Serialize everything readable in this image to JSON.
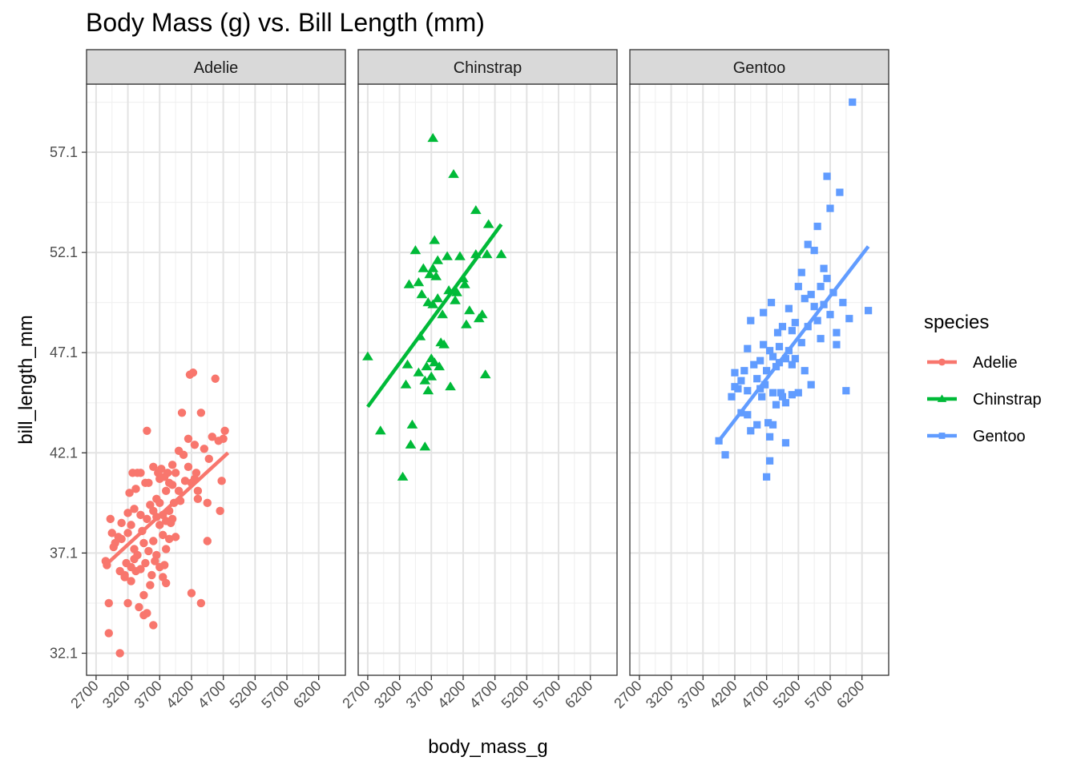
{
  "chart_data": {
    "type": "scatter",
    "title": "Body Mass (g) vs. Bill Length (mm)",
    "xlabel": "body_mass_g",
    "ylabel": "bill_length_mm",
    "xlim": [
      2550,
      6620
    ],
    "ylim": [
      31.0,
      60.5
    ],
    "x_ticks": [
      2700,
      3200,
      3700,
      4200,
      4700,
      5200,
      5700,
      6200
    ],
    "x_tick_labels": [
      "2700",
      "3200",
      "3700",
      "4200",
      "4700",
      "5200",
      "5700",
      "6200"
    ],
    "y_ticks": [
      32.1,
      37.1,
      42.1,
      47.1,
      52.1,
      57.1
    ],
    "y_tick_labels": [
      "32.1",
      "37.1",
      "42.1",
      "47.1",
      "52.1",
      "57.1"
    ],
    "grid": true,
    "legend": {
      "title": "species",
      "placement": "right"
    },
    "series": [
      {
        "name": "Adelie",
        "facet": "Adelie",
        "color": "#F8766D",
        "shape": "circle",
        "trend": [
          [
            2850,
            36.5
          ],
          [
            4775,
            42.1
          ]
        ],
        "points": [
          [
            2850,
            36.7
          ],
          [
            2870,
            36.5
          ],
          [
            2900,
            34.6
          ],
          [
            2900,
            33.1
          ],
          [
            2925,
            38.8
          ],
          [
            2950,
            38.1
          ],
          [
            2975,
            37.4
          ],
          [
            3000,
            37.6
          ],
          [
            3050,
            37.9
          ],
          [
            3075,
            32.1
          ],
          [
            3075,
            36.2
          ],
          [
            3100,
            38.6
          ],
          [
            3100,
            37.8
          ],
          [
            3150,
            36.0
          ],
          [
            3150,
            35.9
          ],
          [
            3175,
            36.6
          ],
          [
            3200,
            39.1
          ],
          [
            3200,
            38.1
          ],
          [
            3200,
            34.6
          ],
          [
            3225,
            40.1
          ],
          [
            3250,
            36.4
          ],
          [
            3250,
            38.5
          ],
          [
            3250,
            35.7
          ],
          [
            3275,
            41.1
          ],
          [
            3300,
            37.3
          ],
          [
            3300,
            39.3
          ],
          [
            3300,
            36.8
          ],
          [
            3325,
            36.2
          ],
          [
            3325,
            40.3
          ],
          [
            3350,
            41.1
          ],
          [
            3350,
            37.0
          ],
          [
            3375,
            34.4
          ],
          [
            3400,
            39.0
          ],
          [
            3400,
            41.1
          ],
          [
            3400,
            36.3
          ],
          [
            3425,
            38.2
          ],
          [
            3450,
            37.6
          ],
          [
            3450,
            35.0
          ],
          [
            3450,
            34.0
          ],
          [
            3475,
            40.6
          ],
          [
            3475,
            36.6
          ],
          [
            3500,
            38.8
          ],
          [
            3500,
            43.2
          ],
          [
            3500,
            34.1
          ],
          [
            3525,
            37.2
          ],
          [
            3525,
            40.6
          ],
          [
            3550,
            39.5
          ],
          [
            3550,
            35.5
          ],
          [
            3575,
            36.0
          ],
          [
            3600,
            39.2
          ],
          [
            3600,
            41.4
          ],
          [
            3600,
            37.7
          ],
          [
            3600,
            33.5
          ],
          [
            3625,
            36.7
          ],
          [
            3650,
            39.8
          ],
          [
            3650,
            38.9
          ],
          [
            3650,
            37.0
          ],
          [
            3675,
            41.1
          ],
          [
            3700,
            39.6
          ],
          [
            3700,
            40.8
          ],
          [
            3700,
            36.4
          ],
          [
            3700,
            38.5
          ],
          [
            3725,
            41.3
          ],
          [
            3750,
            38.0
          ],
          [
            3750,
            39.0
          ],
          [
            3750,
            35.9
          ],
          [
            3775,
            40.9
          ],
          [
            3775,
            36.5
          ],
          [
            3800,
            38.7
          ],
          [
            3800,
            40.2
          ],
          [
            3800,
            37.3
          ],
          [
            3800,
            35.6
          ],
          [
            3825,
            41.1
          ],
          [
            3850,
            39.2
          ],
          [
            3850,
            40.6
          ],
          [
            3850,
            37.8
          ],
          [
            3875,
            38.6
          ],
          [
            3900,
            40.5
          ],
          [
            3900,
            38.8
          ],
          [
            3900,
            41.5
          ],
          [
            3925,
            39.6
          ],
          [
            3950,
            41.1
          ],
          [
            3950,
            37.9
          ],
          [
            4000,
            40.2
          ],
          [
            4000,
            42.2
          ],
          [
            4025,
            39.7
          ],
          [
            4050,
            44.1
          ],
          [
            4075,
            42.0
          ],
          [
            4100,
            40.7
          ],
          [
            4150,
            41.4
          ],
          [
            4150,
            42.8
          ],
          [
            4175,
            46.0
          ],
          [
            4200,
            40.6
          ],
          [
            4200,
            35.1
          ],
          [
            4225,
            46.1
          ],
          [
            4250,
            42.5
          ],
          [
            4250,
            40.8
          ],
          [
            4275,
            41.1
          ],
          [
            4300,
            39.8
          ],
          [
            4300,
            40.2
          ],
          [
            4350,
            44.1
          ],
          [
            4350,
            34.6
          ],
          [
            4400,
            42.3
          ],
          [
            4450,
            39.6
          ],
          [
            4450,
            37.7
          ],
          [
            4475,
            41.8
          ],
          [
            4525,
            42.9
          ],
          [
            4575,
            45.8
          ],
          [
            4625,
            42.7
          ],
          [
            4650,
            39.2
          ],
          [
            4675,
            40.7
          ],
          [
            4700,
            42.8
          ],
          [
            4725,
            43.2
          ]
        ]
      },
      {
        "name": "Chinstrap",
        "facet": "Chinstrap",
        "color": "#00BA38",
        "shape": "triangle",
        "trend": [
          [
            2700,
            44.4
          ],
          [
            4800,
            53.5
          ]
        ],
        "points": [
          [
            2700,
            46.9
          ],
          [
            2900,
            43.2
          ],
          [
            3250,
            40.9
          ],
          [
            3300,
            45.5
          ],
          [
            3325,
            46.5
          ],
          [
            3350,
            50.5
          ],
          [
            3375,
            42.5
          ],
          [
            3400,
            43.5
          ],
          [
            3450,
            52.2
          ],
          [
            3500,
            50.6
          ],
          [
            3500,
            46.1
          ],
          [
            3525,
            47.9
          ],
          [
            3550,
            50.0
          ],
          [
            3575,
            51.3
          ],
          [
            3600,
            45.7
          ],
          [
            3600,
            42.4
          ],
          [
            3625,
            46.4
          ],
          [
            3650,
            49.6
          ],
          [
            3650,
            45.2
          ],
          [
            3675,
            51.0
          ],
          [
            3700,
            46.8
          ],
          [
            3700,
            45.9
          ],
          [
            3725,
            51.3
          ],
          [
            3725,
            57.8
          ],
          [
            3725,
            49.5
          ],
          [
            3750,
            52.7
          ],
          [
            3750,
            46.6
          ],
          [
            3775,
            50.9
          ],
          [
            3800,
            49.8
          ],
          [
            3800,
            51.7
          ],
          [
            3825,
            46.4
          ],
          [
            3850,
            47.6
          ],
          [
            3875,
            49.0
          ],
          [
            3900,
            47.5
          ],
          [
            3950,
            51.9
          ],
          [
            3975,
            50.2
          ],
          [
            4000,
            45.4
          ],
          [
            4050,
            56.0
          ],
          [
            4075,
            49.7
          ],
          [
            4100,
            50.1
          ],
          [
            4150,
            51.9
          ],
          [
            4200,
            50.8
          ],
          [
            4225,
            50.5
          ],
          [
            4250,
            48.5
          ],
          [
            4300,
            49.2
          ],
          [
            4400,
            52.0
          ],
          [
            4400,
            54.2
          ],
          [
            4450,
            48.8
          ],
          [
            4500,
            49.0
          ],
          [
            4550,
            46.0
          ],
          [
            4575,
            52.0
          ],
          [
            4600,
            53.5
          ],
          [
            4800,
            52.0
          ]
        ]
      },
      {
        "name": "Gentoo",
        "facet": "Gentoo",
        "color": "#619CFF",
        "shape": "square",
        "trend": [
          [
            3950,
            42.7
          ],
          [
            6300,
            52.4
          ]
        ],
        "points": [
          [
            3950,
            42.7
          ],
          [
            4050,
            42.0
          ],
          [
            4150,
            44.9
          ],
          [
            4200,
            45.4
          ],
          [
            4200,
            46.1
          ],
          [
            4250,
            45.3
          ],
          [
            4300,
            45.7
          ],
          [
            4300,
            44.1
          ],
          [
            4350,
            46.2
          ],
          [
            4400,
            47.3
          ],
          [
            4400,
            44.0
          ],
          [
            4400,
            45.2
          ],
          [
            4450,
            48.7
          ],
          [
            4450,
            43.2
          ],
          [
            4500,
            46.5
          ],
          [
            4550,
            45.8
          ],
          [
            4550,
            43.5
          ],
          [
            4600,
            46.7
          ],
          [
            4600,
            45.3
          ],
          [
            4625,
            44.9
          ],
          [
            4650,
            47.5
          ],
          [
            4650,
            49.1
          ],
          [
            4675,
            45.5
          ],
          [
            4700,
            46.2
          ],
          [
            4700,
            40.9
          ],
          [
            4725,
            43.6
          ],
          [
            4750,
            42.9
          ],
          [
            4750,
            47.2
          ],
          [
            4750,
            41.7
          ],
          [
            4775,
            49.6
          ],
          [
            4800,
            45.1
          ],
          [
            4800,
            46.9
          ],
          [
            4800,
            43.5
          ],
          [
            4850,
            46.4
          ],
          [
            4850,
            44.5
          ],
          [
            4875,
            48.1
          ],
          [
            4900,
            47.4
          ],
          [
            4900,
            46.6
          ],
          [
            4925,
            45.1
          ],
          [
            4950,
            48.4
          ],
          [
            4950,
            44.9
          ],
          [
            5000,
            46.8
          ],
          [
            5000,
            44.6
          ],
          [
            5000,
            42.6
          ],
          [
            5050,
            49.3
          ],
          [
            5050,
            47.2
          ],
          [
            5100,
            46.5
          ],
          [
            5100,
            48.2
          ],
          [
            5100,
            45.0
          ],
          [
            5150,
            48.6
          ],
          [
            5150,
            46.8
          ],
          [
            5200,
            50.4
          ],
          [
            5200,
            45.1
          ],
          [
            5250,
            47.6
          ],
          [
            5250,
            51.1
          ],
          [
            5300,
            49.8
          ],
          [
            5300,
            46.2
          ],
          [
            5350,
            48.4
          ],
          [
            5350,
            52.5
          ],
          [
            5400,
            50.0
          ],
          [
            5400,
            45.5
          ],
          [
            5450,
            49.4
          ],
          [
            5450,
            52.2
          ],
          [
            5500,
            53.4
          ],
          [
            5500,
            48.7
          ],
          [
            5550,
            50.4
          ],
          [
            5550,
            47.8
          ],
          [
            5600,
            51.3
          ],
          [
            5600,
            49.5
          ],
          [
            5650,
            55.9
          ],
          [
            5650,
            50.8
          ],
          [
            5700,
            49.0
          ],
          [
            5700,
            54.3
          ],
          [
            5750,
            50.1
          ],
          [
            5800,
            48.1
          ],
          [
            5800,
            47.5
          ],
          [
            5850,
            55.1
          ],
          [
            5900,
            49.6
          ],
          [
            5950,
            45.2
          ],
          [
            6000,
            48.8
          ],
          [
            6050,
            59.6
          ],
          [
            6300,
            49.2
          ]
        ]
      }
    ]
  }
}
